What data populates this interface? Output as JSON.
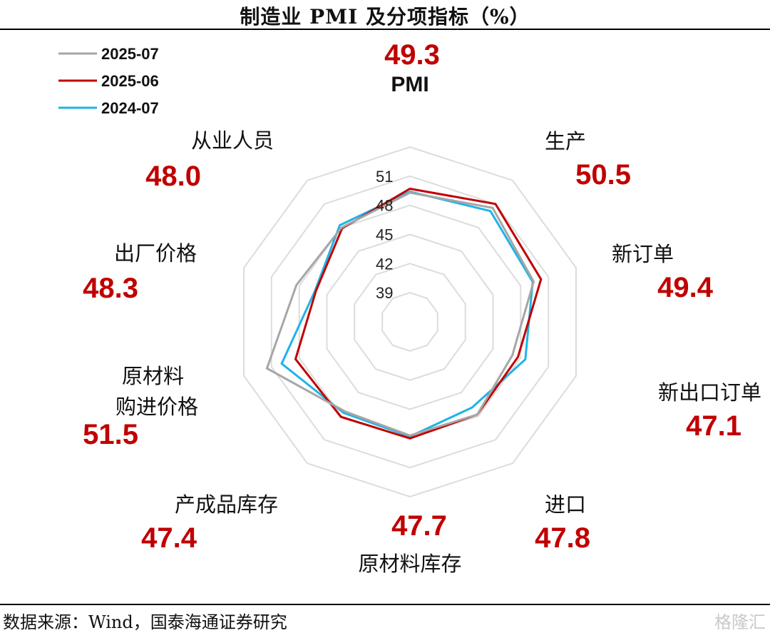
{
  "title": "制造业 PMI 及分项指标（%）",
  "source": "数据来源：Wind，国泰海通证券研究",
  "watermark": "格隆汇",
  "chart_data": {
    "type": "radar",
    "title": "制造业 PMI 及分项指标（%）",
    "categories": [
      "PMI",
      "生产",
      "新订单",
      "新出口订单",
      "进口",
      "原材料库存",
      "产成品库存",
      "原材料购进价格",
      "出厂价格",
      "从业人员"
    ],
    "value_labels": [
      "49.3",
      "50.5",
      "49.4",
      "47.1",
      "47.8",
      "47.7",
      "47.4",
      "51.5",
      "48.3",
      "48.0"
    ],
    "axis": {
      "min": 36,
      "max": 54,
      "ticks": [
        39,
        42,
        45,
        48,
        51
      ]
    },
    "grid": true,
    "legend_position": "top-left",
    "series": [
      {
        "name": "2025-07",
        "color": "#a6a6a6",
        "values": [
          49.3,
          50.5,
          49.4,
          47.1,
          47.8,
          47.7,
          47.4,
          51.5,
          48.3,
          48.0
        ]
      },
      {
        "name": "2025-06",
        "color": "#c00000",
        "values": [
          49.7,
          51.0,
          50.2,
          47.7,
          47.8,
          48.0,
          48.1,
          48.4,
          46.2,
          47.9
        ]
      },
      {
        "name": "2024-07",
        "color": "#1fb3e8",
        "values": [
          49.4,
          50.1,
          49.3,
          48.5,
          46.9,
          47.8,
          47.6,
          49.9,
          46.3,
          48.3
        ]
      }
    ]
  }
}
